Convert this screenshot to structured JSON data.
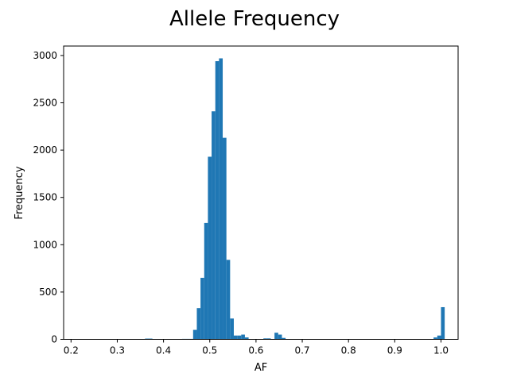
{
  "chart_data": {
    "type": "bar",
    "title": "Allele Frequency",
    "xlabel": "AF",
    "ylabel": "Frequency",
    "xlim": [
      0.184,
      1.037
    ],
    "ylim": [
      0,
      3100
    ],
    "xticks": [
      0.2,
      0.3,
      0.4,
      0.5,
      0.6,
      0.7,
      0.8,
      0.9,
      1.0
    ],
    "xtick_labels": [
      "0.2",
      "0.3",
      "0.4",
      "0.5",
      "0.6",
      "0.7",
      "0.8",
      "0.9",
      "1.0"
    ],
    "yticks": [
      0,
      500,
      1000,
      1500,
      2000,
      2500,
      3000
    ],
    "ytick_labels": [
      "0",
      "500",
      "1000",
      "1500",
      "2000",
      "2500",
      "3000"
    ],
    "grid": false,
    "bar_color": "#1f77b4",
    "bins": {
      "start": 0.2,
      "width": 0.008,
      "counts": [
        0,
        0,
        0,
        0,
        0,
        0,
        0,
        0,
        0,
        0,
        0,
        0,
        0,
        0,
        0,
        0,
        0,
        0,
        0,
        0,
        8,
        8,
        0,
        0,
        0,
        0,
        0,
        0,
        0,
        0,
        5,
        5,
        5,
        100,
        330,
        650,
        1230,
        1930,
        2410,
        2940,
        2970,
        2130,
        840,
        220,
        40,
        40,
        50,
        20,
        0,
        0,
        0,
        0,
        10,
        10,
        0,
        70,
        50,
        15,
        0,
        0,
        0,
        0,
        0,
        0,
        0,
        0,
        0,
        0,
        0,
        0,
        0,
        0,
        0,
        0,
        0,
        0,
        0,
        0,
        0,
        0,
        0,
        0,
        0,
        0,
        0,
        0,
        0,
        0,
        0,
        0,
        0,
        0,
        0,
        0,
        0,
        0,
        0,
        0,
        20,
        40,
        340
      ]
    }
  }
}
